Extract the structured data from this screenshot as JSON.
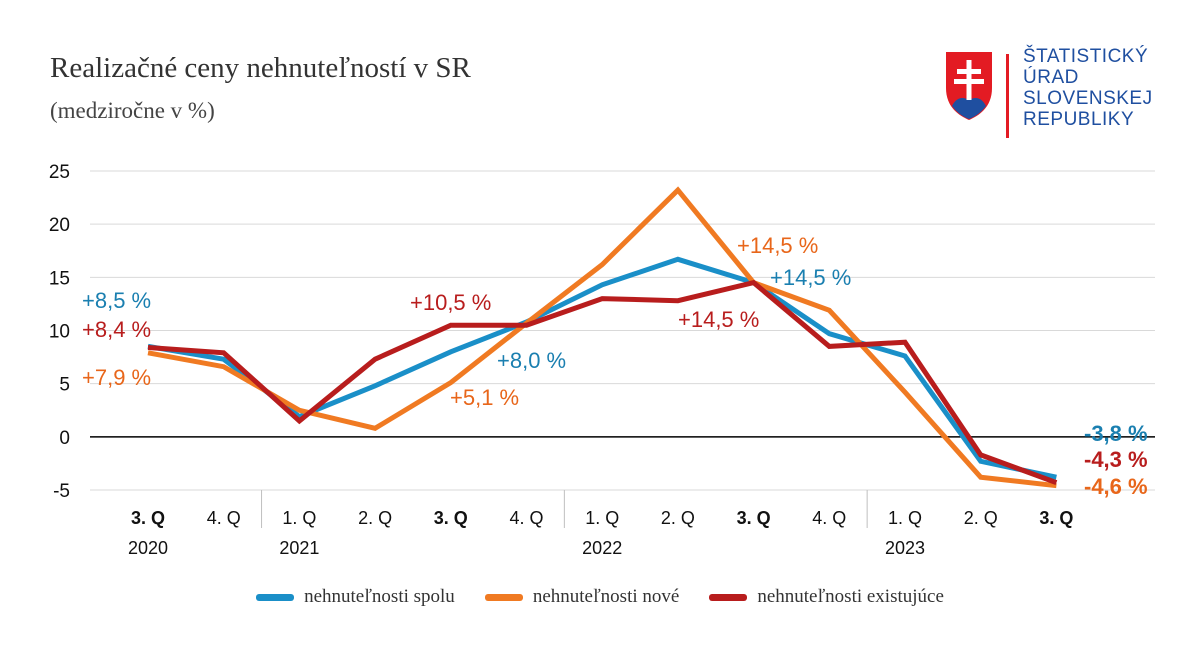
{
  "title": "Realizačné ceny nehnuteľností v SR",
  "subtitle": "(medziročne v %)",
  "logo": {
    "lines": [
      "ŠTATISTICKÝ",
      "ÚRAD",
      "SLOVENSKEJ",
      "REPUBLIKY"
    ],
    "color": "#1f4fa0"
  },
  "chart_data": {
    "type": "line",
    "categories": [
      "3. Q",
      "4. Q",
      "1. Q",
      "2. Q",
      "3. Q",
      "4. Q",
      "1. Q",
      "2. Q",
      "3. Q",
      "4. Q",
      "1. Q",
      "2. Q",
      "3. Q"
    ],
    "bold_categories": [
      0,
      4,
      8,
      12
    ],
    "years": [
      {
        "label": "2020",
        "index": 0
      },
      {
        "label": "2021",
        "index": 2
      },
      {
        "label": "2022",
        "index": 6
      },
      {
        "label": "2023",
        "index": 10
      }
    ],
    "year_separators_before": [
      2,
      6,
      10
    ],
    "ylim": [
      -5,
      25
    ],
    "yticks": [
      -5,
      0,
      5,
      10,
      15,
      20,
      25
    ],
    "grid": true,
    "legend_position": "bottom",
    "series": [
      {
        "name": "nehnuteľnosti spolu",
        "color": "#1a8fc8",
        "values": [
          8.5,
          7.3,
          1.9,
          4.8,
          8.0,
          10.8,
          14.3,
          16.7,
          14.5,
          9.7,
          7.6,
          -2.3,
          -3.8
        ]
      },
      {
        "name": "nehnuteľnosti nové",
        "color": "#f07a22",
        "values": [
          7.9,
          6.6,
          2.5,
          0.8,
          5.1,
          10.7,
          16.2,
          23.2,
          14.5,
          11.9,
          4.2,
          -3.8,
          -4.6
        ]
      },
      {
        "name": "nehnuteľnosti existujúce",
        "color": "#b81d1d",
        "values": [
          8.4,
          7.9,
          1.5,
          7.3,
          10.5,
          10.5,
          13.0,
          12.8,
          14.5,
          8.5,
          8.9,
          -1.7,
          -4.3
        ]
      }
    ],
    "annotations": [
      {
        "text": "+8,5 %",
        "series": 0,
        "index": 0,
        "color": "#1a7fb0",
        "bold": false
      },
      {
        "text": "+8,4 %",
        "series": 2,
        "index": 0,
        "color": "#b81d1d",
        "bold": false
      },
      {
        "text": "+7,9 %",
        "series": 1,
        "index": 0,
        "color": "#e8661a",
        "bold": false
      },
      {
        "text": "+10,5 %",
        "series": 2,
        "index": 4,
        "color": "#b81d1d",
        "bold": false
      },
      {
        "text": "+8,0 %",
        "series": 0,
        "index": 4,
        "color": "#1a7fb0",
        "bold": false
      },
      {
        "text": "+5,1 %",
        "series": 1,
        "index": 4,
        "color": "#e8661a",
        "bold": false
      },
      {
        "text": "+14,5 %",
        "series": 1,
        "index": 8,
        "color": "#e8661a",
        "bold": false
      },
      {
        "text": "+14,5 %",
        "series": 0,
        "index": 8,
        "color": "#1a7fb0",
        "bold": false
      },
      {
        "text": "+14,5 %",
        "series": 2,
        "index": 8,
        "color": "#b81d1d",
        "bold": false
      },
      {
        "text": "-3,8 %",
        "series": 0,
        "index": 12,
        "color": "#1a7fb0",
        "bold": true
      },
      {
        "text": "-4,3 %",
        "series": 2,
        "index": 12,
        "color": "#b81d1d",
        "bold": true
      },
      {
        "text": "-4,6 %",
        "series": 1,
        "index": 12,
        "color": "#e8661a",
        "bold": true
      }
    ]
  }
}
